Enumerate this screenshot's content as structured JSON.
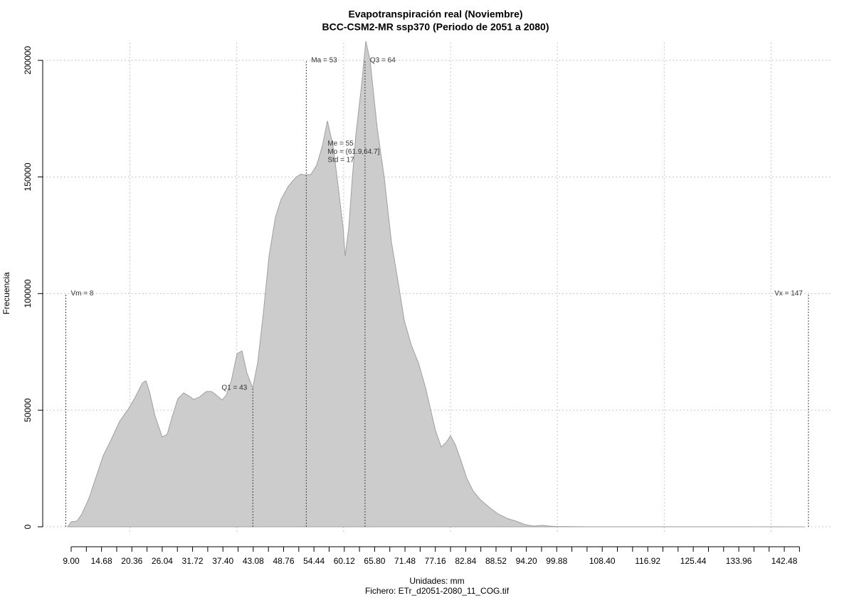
{
  "chart_data": {
    "type": "area",
    "title": "Evapotranspiración real (Noviembre)",
    "subtitle": "BCC-CSM2-MR ssp370 (Periodo de 2051 a 2080)",
    "x_label": "Unidades: mm",
    "x_label2": "Fichero: ETr_d2051-2080_11_COG.tif",
    "y_label": "Frecuencia",
    "color": "#cccccc",
    "edge_color": "#a0a0a0",
    "grid": true,
    "xlim": [
      3.67,
      151.53
    ],
    "ylim": [
      -8550,
      210000
    ],
    "yticks": [
      0,
      50000,
      100000,
      150000,
      200000
    ],
    "xticks": [
      {
        "value": 9.0,
        "label": "9.00"
      },
      {
        "value": 14.68,
        "label": "14.68"
      },
      {
        "value": 20.36,
        "label": "20.36"
      },
      {
        "value": 26.04,
        "label": "26.04"
      },
      {
        "value": 31.72,
        "label": "31.72"
      },
      {
        "value": 37.4,
        "label": "37.40"
      },
      {
        "value": 43.08,
        "label": "43.08"
      },
      {
        "value": 48.76,
        "label": "48.76"
      },
      {
        "value": 54.44,
        "label": "54.44"
      },
      {
        "value": 60.12,
        "label": "60.12"
      },
      {
        "value": 65.8,
        "label": "65.80"
      },
      {
        "value": 71.48,
        "label": "71.48"
      },
      {
        "value": 77.16,
        "label": "77.16"
      },
      {
        "value": 82.84,
        "label": "82.84"
      },
      {
        "value": 88.52,
        "label": "88.52"
      },
      {
        "value": 94.2,
        "label": "94.20"
      },
      {
        "value": 99.88,
        "label": "99.88"
      },
      {
        "value": 108.4,
        "label": "108.40"
      },
      {
        "value": 116.92,
        "label": "116.92"
      },
      {
        "value": 125.44,
        "label": "125.44"
      },
      {
        "value": 133.96,
        "label": "133.96"
      },
      {
        "value": 142.48,
        "label": "142.48"
      }
    ],
    "xminor_ticks": [
      11.84,
      17.52,
      23.2,
      28.88,
      34.56,
      40.24,
      45.92,
      51.6,
      57.28,
      62.96,
      68.64,
      74.32,
      80,
      85.68,
      91.36,
      97.04,
      102.72,
      105.56,
      111.24,
      114.08,
      119.76,
      122.6,
      128.28,
      131.12,
      136.8,
      139.64,
      145.32
    ],
    "xgrid": [
      20,
      40,
      60,
      80,
      100,
      120,
      140
    ],
    "x": [
      8.33,
      9.0,
      10.07,
      11.0,
      12.33,
      13.66,
      15.0,
      16.33,
      18.06,
      19.66,
      20.99,
      22.32,
      22.99,
      23.65,
      24.72,
      26.05,
      26.98,
      27.92,
      28.98,
      30.05,
      30.98,
      31.91,
      32.98,
      34.31,
      35.24,
      36.31,
      37.24,
      38.04,
      38.97,
      40.04,
      40.97,
      41.9,
      42.97,
      43.9,
      44.97,
      46.03,
      47.23,
      48.3,
      49.63,
      50.96,
      51.89,
      52.96,
      53.89,
      54.96,
      56.02,
      56.96,
      58.02,
      58.95,
      59.89,
      60.29,
      60.95,
      61.62,
      62.28,
      63.35,
      64.15,
      64.95,
      66.28,
      67.61,
      68.94,
      70.28,
      71.34,
      72.67,
      74.01,
      75.34,
      76.27,
      77.2,
      78.27,
      79.33,
      80.0,
      80.93,
      82.0,
      83.06,
      84.26,
      85.59,
      87.33,
      88.92,
      90.52,
      92.25,
      93.99,
      95.59,
      97.19,
      98.52,
      99.85,
      102.25,
      105.18,
      146.2
    ],
    "values": [
      0,
      2137,
      2443,
      5496,
      12214,
      21374,
      30534,
      36641,
      45191,
      50381,
      55572,
      61679,
      62595,
      58015,
      47328,
      38473,
      39695,
      47328,
      54961,
      57404,
      56183,
      54656,
      55572,
      58015,
      58015,
      56183,
      54351,
      56488,
      62595,
      74198,
      75420,
      65954,
      59542,
      70229,
      91603,
      116031,
      132824,
      140458,
      145954,
      149618,
      151145,
      150840,
      151145,
      155115,
      163359,
      174046,
      163359,
      146565,
      128244,
      116031,
      128244,
      149618,
      167939,
      189313,
      208244,
      200000,
      170992,
      149618,
      122137,
      103817,
      88550,
      77863,
      70229,
      59542,
      50381,
      41221,
      34198,
      36641,
      39084,
      35115,
      28092,
      20763,
      15267,
      11603,
      8244,
      5496,
      3664,
      2443,
      916,
      305,
      611,
      305,
      150,
      100,
      50,
      0
    ],
    "markers": [
      {
        "label": "Vm = 8",
        "value": 8,
        "height": 100000
      },
      {
        "label": "Q1 = 43",
        "value": 43,
        "height": 59500
      },
      {
        "label": "Ma = 53",
        "value": 53,
        "height": 200000
      },
      {
        "label": "Q3 = 64",
        "value": 64,
        "height": 200000
      },
      {
        "label": "Vx = 147",
        "value": 147,
        "height": 100000
      }
    ],
    "stats": [
      "Me = 55",
      "Mo = (61.9,64.7]",
      "Std = 17"
    ]
  }
}
